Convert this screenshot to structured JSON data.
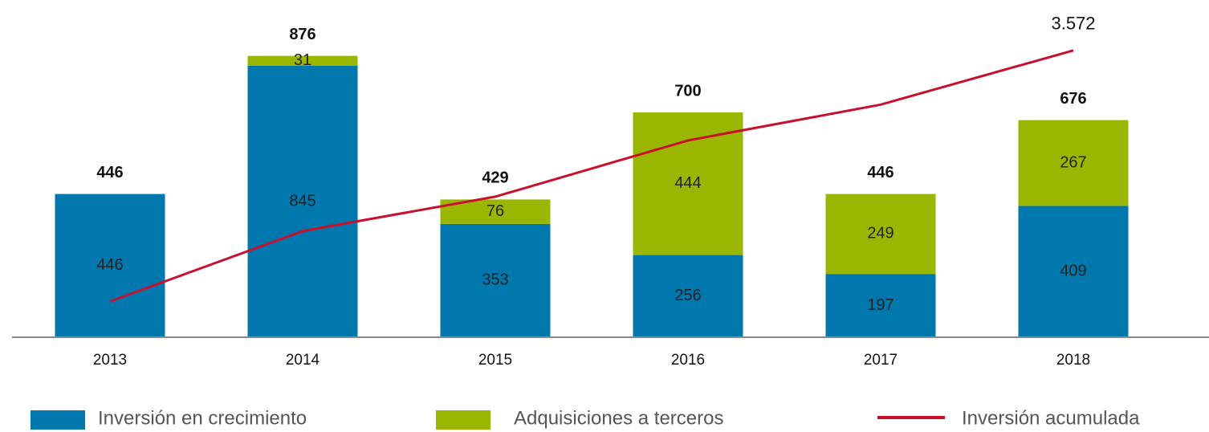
{
  "chart_data": {
    "type": "bar",
    "stacked": true,
    "categories": [
      "2013",
      "2014",
      "2015",
      "2016",
      "2017",
      "2018"
    ],
    "series": [
      {
        "name": "Inversión en crecimiento",
        "color": "#0077ad",
        "values": [
          446,
          845,
          353,
          256,
          197,
          409
        ]
      },
      {
        "name": "Adquisiciones a terceros",
        "color": "#9bb600",
        "values": [
          null,
          31,
          76,
          444,
          249,
          267
        ]
      },
      {
        "name": "Inversión acumulada",
        "color": "#c8102e",
        "type": "line",
        "axis": "y2",
        "values": [
          446,
          1322,
          1751,
          2451,
          2897,
          3572
        ],
        "value_labels": [
          null,
          null,
          null,
          null,
          null,
          "3.572"
        ]
      }
    ],
    "totals": [
      446,
      876,
      429,
      700,
      446,
      676
    ],
    "ylim": [
      0,
      1000
    ],
    "y2lim": [
      0,
      4000
    ]
  }
}
